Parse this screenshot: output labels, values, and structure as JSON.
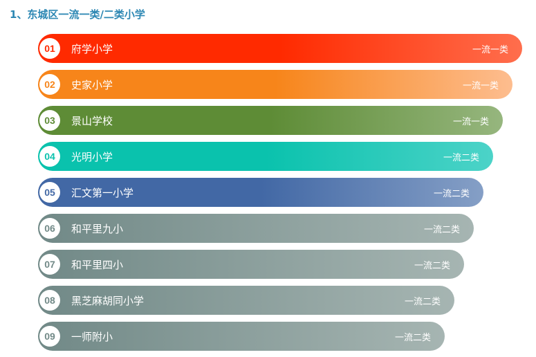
{
  "title": "1、东城区一流一类/二类小学",
  "schools": [
    {
      "rank": "01",
      "name": "府学小学",
      "category": "一流一类",
      "color_start": "#ff2a00",
      "color_end": "#ff6e4d"
    },
    {
      "rank": "02",
      "name": "史家小学",
      "category": "一流一类",
      "color_start": "#f7851a",
      "color_end": "#fdbd8f"
    },
    {
      "rank": "03",
      "name": "景山学校",
      "category": "一流一类",
      "color_start": "#5e8c36",
      "color_end": "#96b67e"
    },
    {
      "rank": "04",
      "name": "光明小学",
      "category": "一流二类",
      "color_start": "#0ac2ad",
      "color_end": "#4cd3c8"
    },
    {
      "rank": "05",
      "name": "汇文第一小学",
      "category": "一流二类",
      "color_start": "#4268a5",
      "color_end": "#859fc6"
    },
    {
      "rank": "06",
      "name": "和平里九小",
      "category": "一流二类",
      "color_start": "#718987",
      "color_end": "#a6b5b2"
    },
    {
      "rank": "07",
      "name": "和平里四小",
      "category": "一流二类",
      "color_start": "#718987",
      "color_end": "#a6b5b2"
    },
    {
      "rank": "08",
      "name": "黑芝麻胡同小学",
      "category": "一流二类",
      "color_start": "#718987",
      "color_end": "#a6b5b2"
    },
    {
      "rank": "09",
      "name": "一师附小",
      "category": "一流二类",
      "color_start": "#718987",
      "color_end": "#a6b5b2"
    }
  ]
}
